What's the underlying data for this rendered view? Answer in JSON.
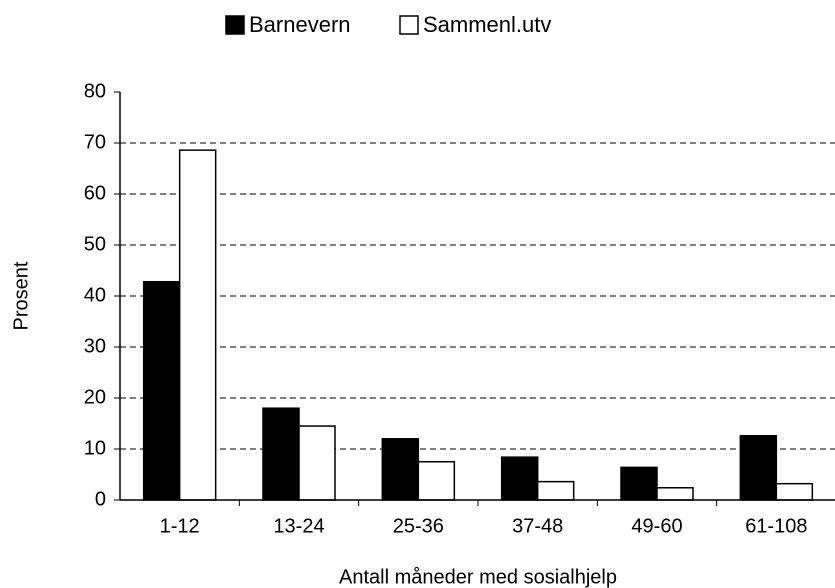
{
  "chart_data": {
    "type": "bar",
    "categories": [
      "1-12",
      "13-24",
      "25-36",
      "37-48",
      "49-60",
      "61-108"
    ],
    "series": [
      {
        "name": "Barnevern",
        "color": "#000000",
        "values": [
          42.8,
          18,
          12,
          8.4,
          6.4,
          12.6
        ]
      },
      {
        "name": "Sammenl.utv",
        "color": "#ffffff",
        "values": [
          68.6,
          14.5,
          7.5,
          3.6,
          2.4,
          3.2
        ]
      }
    ],
    "y_label": "Prosent",
    "x_label": "Antall måneder med sosialhjelp",
    "ylim": [
      0,
      80
    ],
    "yticks": [
      0,
      10,
      20,
      30,
      40,
      50,
      60,
      70,
      80
    ],
    "grid": true,
    "legend": "top"
  }
}
